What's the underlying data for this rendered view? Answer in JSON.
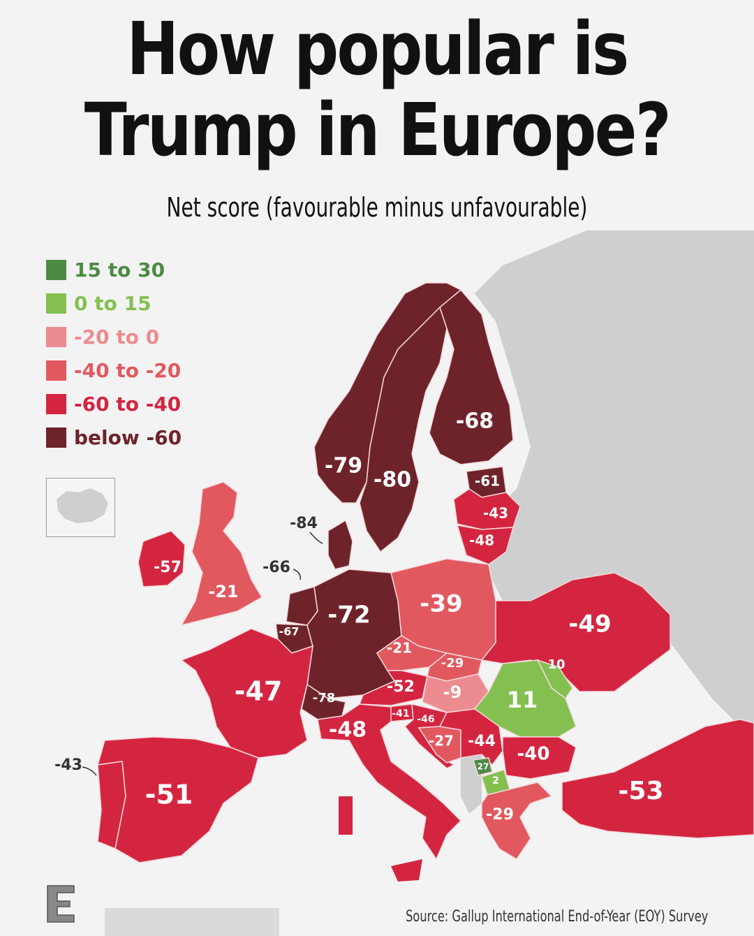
{
  "title": {
    "line1": "How popular is",
    "line2": "Trump in Europe?"
  },
  "subtitle": "Net score (favourable minus unfavourable)",
  "legend": [
    {
      "label": "15 to 30",
      "color": "#4e8a44"
    },
    {
      "label": "0 to 15",
      "color": "#84c050"
    },
    {
      "label": "-20 to 0",
      "color": "#ec8c90"
    },
    {
      "label": "-40 to -20",
      "color": "#e2585f"
    },
    {
      "label": "-60 to -40",
      "color": "#d42540"
    },
    {
      "label": "below -60",
      "color": "#6e232b"
    }
  ],
  "colors": {
    "background": "#f3f3f3",
    "land_other": "#cfcfcf",
    "sea": "#ffffff",
    "border": "#f4d9dc"
  },
  "countries": [
    {
      "name": "Finland",
      "value": "-68"
    },
    {
      "name": "Sweden",
      "value": "-80"
    },
    {
      "name": "Norway",
      "value": "-79"
    },
    {
      "name": "Estonia",
      "value": "-61"
    },
    {
      "name": "Latvia",
      "value": "-43"
    },
    {
      "name": "Lithuania",
      "value": "-48"
    },
    {
      "name": "Denmark",
      "value": "-84"
    },
    {
      "name": "Ireland",
      "value": "-57"
    },
    {
      "name": "United Kingdom",
      "value": "-21"
    },
    {
      "name": "Netherlands",
      "value": "-66"
    },
    {
      "name": "Belgium",
      "value": "-67"
    },
    {
      "name": "Germany",
      "value": "-72"
    },
    {
      "name": "Poland",
      "value": "-39"
    },
    {
      "name": "Ukraine",
      "value": "-49"
    },
    {
      "name": "France",
      "value": "-47"
    },
    {
      "name": "Czechia",
      "value": "-21"
    },
    {
      "name": "Slovakia",
      "value": "-29"
    },
    {
      "name": "Moldova",
      "value": "10"
    },
    {
      "name": "Romania",
      "value": "11"
    },
    {
      "name": "Hungary",
      "value": "-9"
    },
    {
      "name": "Austria",
      "value": "-52"
    },
    {
      "name": "Switzerland",
      "value": "-78"
    },
    {
      "name": "Slovenia",
      "value": "-41"
    },
    {
      "name": "Croatia",
      "value": "-46"
    },
    {
      "name": "Italy",
      "value": "-48"
    },
    {
      "name": "Bosnia and Herzegovina",
      "value": "-27"
    },
    {
      "name": "Serbia",
      "value": "-44"
    },
    {
      "name": "Bulgaria",
      "value": "-40"
    },
    {
      "name": "Kosovo",
      "value": "27"
    },
    {
      "name": "North Macedonia",
      "value": "2"
    },
    {
      "name": "Greece",
      "value": "-29"
    },
    {
      "name": "Portugal",
      "value": "-43"
    },
    {
      "name": "Spain",
      "value": "-51"
    },
    {
      "name": "Turkey",
      "value": "-53"
    }
  ],
  "source": "Source: Gallup International End-of-Year (EOY) Survey",
  "logo_text": "E"
}
